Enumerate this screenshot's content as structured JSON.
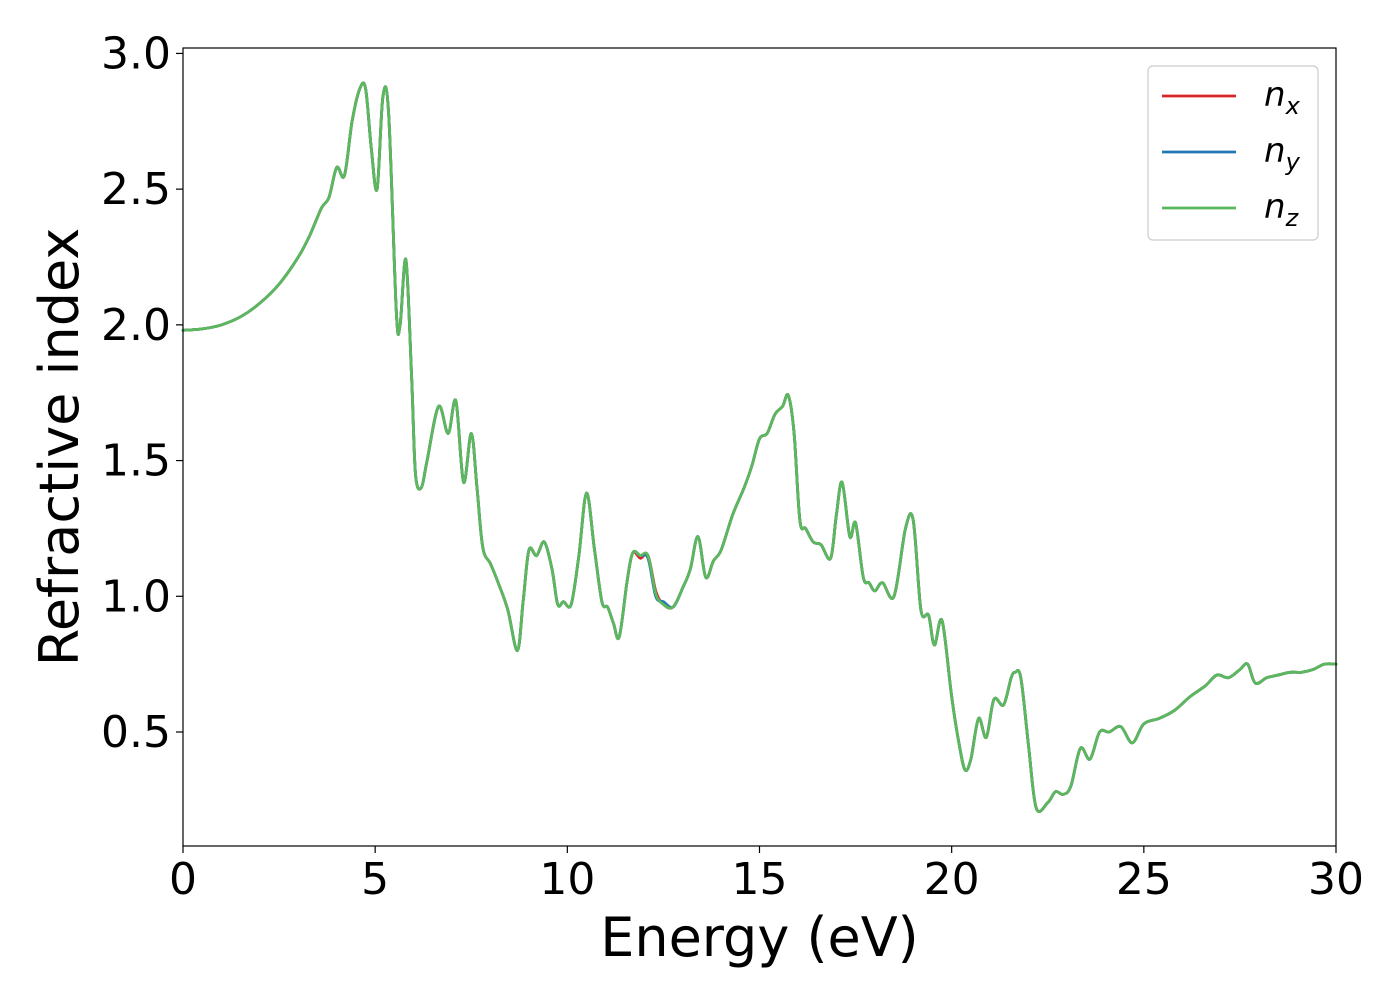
{
  "chart_data": {
    "type": "line",
    "title": "",
    "xlabel": "Energy (eV)",
    "ylabel": "Refractive index",
    "xlim": [
      0,
      30
    ],
    "ylim": [
      0.08,
      3.02
    ],
    "xticks": [
      0,
      5,
      10,
      15,
      20,
      25,
      30
    ],
    "xtick_labels": [
      "0",
      "5",
      "10",
      "15",
      "20",
      "25",
      "30"
    ],
    "yticks": [
      0.5,
      1.0,
      1.5,
      2.0,
      2.5,
      3.0
    ],
    "ytick_labels": [
      "0.5",
      "1.0",
      "1.5",
      "2.0",
      "2.5",
      "3.0"
    ],
    "grid": false,
    "legend_position": "top-right",
    "legend": [
      {
        "base": "n",
        "sub": "x"
      },
      {
        "base": "n",
        "sub": "y"
      },
      {
        "base": "n",
        "sub": "z"
      }
    ],
    "colors": [
      "#d62728",
      "#1f77b4",
      "#5cb85c"
    ],
    "x": [
      0,
      0.5,
      1.0,
      1.5,
      2.0,
      2.5,
      3.0,
      3.3,
      3.6,
      3.8,
      4.0,
      4.2,
      4.4,
      4.6,
      4.75,
      4.9,
      5.05,
      5.2,
      5.35,
      5.55,
      5.65,
      5.8,
      5.95,
      6.05,
      6.2,
      6.35,
      6.65,
      6.9,
      7.1,
      7.3,
      7.5,
      7.65,
      7.8,
      8.0,
      8.2,
      8.45,
      8.7,
      8.85,
      9.0,
      9.2,
      9.4,
      9.6,
      9.75,
      9.9,
      10.1,
      10.3,
      10.5,
      10.7,
      10.9,
      11.05,
      11.2,
      11.35,
      11.55,
      11.7,
      11.9,
      12.1,
      12.3,
      12.5,
      12.75,
      13.0,
      13.2,
      13.4,
      13.6,
      13.8,
      14.0,
      14.3,
      14.6,
      14.8,
      15.0,
      15.2,
      15.4,
      15.6,
      15.75,
      15.9,
      16.05,
      16.2,
      16.4,
      16.6,
      16.85,
      17.0,
      17.15,
      17.35,
      17.5,
      17.7,
      17.85,
      18.0,
      18.2,
      18.5,
      18.8,
      19.0,
      19.2,
      19.4,
      19.55,
      19.75,
      20.0,
      20.2,
      20.35,
      20.5,
      20.7,
      20.9,
      21.1,
      21.35,
      21.55,
      21.65,
      21.8,
      22.0,
      22.2,
      22.5,
      22.7,
      22.9,
      23.1,
      23.35,
      23.6,
      23.85,
      24.1,
      24.4,
      24.7,
      25.0,
      25.4,
      25.8,
      26.2,
      26.6,
      26.9,
      27.2,
      27.5,
      27.7,
      27.9,
      28.2,
      28.5,
      28.8,
      29.1,
      29.4,
      29.7,
      30.0
    ],
    "series": [
      {
        "name": "n_x",
        "values": [
          1.98,
          1.985,
          2.0,
          2.03,
          2.08,
          2.15,
          2.25,
          2.33,
          2.43,
          2.47,
          2.58,
          2.55,
          2.75,
          2.87,
          2.87,
          2.65,
          2.5,
          2.84,
          2.78,
          2.05,
          2.0,
          2.24,
          1.8,
          1.45,
          1.4,
          1.5,
          1.7,
          1.6,
          1.72,
          1.42,
          1.6,
          1.4,
          1.18,
          1.12,
          1.05,
          0.95,
          0.8,
          0.98,
          1.17,
          1.15,
          1.2,
          1.1,
          0.97,
          0.98,
          0.97,
          1.15,
          1.38,
          1.18,
          0.98,
          0.96,
          0.9,
          0.85,
          1.05,
          1.16,
          1.14,
          1.15,
          1.02,
          0.97,
          0.96,
          1.03,
          1.1,
          1.22,
          1.07,
          1.13,
          1.17,
          1.3,
          1.4,
          1.48,
          1.58,
          1.6,
          1.67,
          1.7,
          1.74,
          1.6,
          1.28,
          1.25,
          1.2,
          1.19,
          1.14,
          1.3,
          1.42,
          1.22,
          1.27,
          1.07,
          1.05,
          1.02,
          1.05,
          1.0,
          1.25,
          1.28,
          0.95,
          0.93,
          0.82,
          0.91,
          0.63,
          0.45,
          0.36,
          0.4,
          0.55,
          0.48,
          0.62,
          0.6,
          0.7,
          0.72,
          0.7,
          0.45,
          0.22,
          0.24,
          0.28,
          0.27,
          0.3,
          0.44,
          0.4,
          0.5,
          0.5,
          0.52,
          0.46,
          0.53,
          0.55,
          0.58,
          0.63,
          0.67,
          0.71,
          0.7,
          0.73,
          0.75,
          0.68,
          0.7,
          0.71,
          0.72,
          0.72,
          0.73,
          0.75,
          0.75
        ]
      },
      {
        "name": "n_y",
        "values": [
          1.98,
          1.985,
          2.0,
          2.03,
          2.08,
          2.15,
          2.25,
          2.33,
          2.43,
          2.47,
          2.58,
          2.55,
          2.75,
          2.87,
          2.87,
          2.65,
          2.5,
          2.84,
          2.78,
          2.05,
          2.0,
          2.24,
          1.8,
          1.45,
          1.4,
          1.5,
          1.7,
          1.6,
          1.72,
          1.42,
          1.6,
          1.4,
          1.18,
          1.12,
          1.05,
          0.95,
          0.8,
          0.98,
          1.17,
          1.15,
          1.2,
          1.1,
          0.97,
          0.98,
          0.97,
          1.15,
          1.38,
          1.18,
          0.98,
          0.96,
          0.9,
          0.85,
          1.05,
          1.16,
          1.15,
          1.14,
          1.0,
          0.98,
          0.96,
          1.03,
          1.1,
          1.22,
          1.07,
          1.13,
          1.17,
          1.3,
          1.4,
          1.48,
          1.58,
          1.6,
          1.67,
          1.7,
          1.74,
          1.6,
          1.28,
          1.25,
          1.2,
          1.19,
          1.14,
          1.3,
          1.42,
          1.22,
          1.27,
          1.07,
          1.05,
          1.02,
          1.05,
          1.0,
          1.25,
          1.28,
          0.95,
          0.93,
          0.82,
          0.91,
          0.63,
          0.45,
          0.36,
          0.4,
          0.55,
          0.48,
          0.62,
          0.6,
          0.7,
          0.72,
          0.7,
          0.45,
          0.22,
          0.24,
          0.28,
          0.27,
          0.3,
          0.44,
          0.4,
          0.5,
          0.5,
          0.52,
          0.46,
          0.53,
          0.55,
          0.58,
          0.63,
          0.67,
          0.71,
          0.7,
          0.73,
          0.75,
          0.68,
          0.7,
          0.71,
          0.72,
          0.72,
          0.73,
          0.75,
          0.75
        ]
      },
      {
        "name": "n_z",
        "values": [
          1.98,
          1.985,
          2.0,
          2.03,
          2.08,
          2.15,
          2.25,
          2.33,
          2.43,
          2.47,
          2.58,
          2.55,
          2.75,
          2.87,
          2.87,
          2.65,
          2.5,
          2.84,
          2.78,
          2.05,
          2.0,
          2.24,
          1.8,
          1.45,
          1.4,
          1.5,
          1.7,
          1.6,
          1.72,
          1.42,
          1.6,
          1.4,
          1.18,
          1.12,
          1.05,
          0.95,
          0.8,
          0.98,
          1.17,
          1.15,
          1.2,
          1.1,
          0.97,
          0.98,
          0.97,
          1.15,
          1.38,
          1.18,
          0.98,
          0.96,
          0.9,
          0.85,
          1.05,
          1.16,
          1.15,
          1.15,
          1.01,
          0.97,
          0.96,
          1.03,
          1.1,
          1.22,
          1.07,
          1.13,
          1.17,
          1.3,
          1.4,
          1.48,
          1.58,
          1.6,
          1.67,
          1.7,
          1.74,
          1.6,
          1.28,
          1.25,
          1.2,
          1.19,
          1.14,
          1.3,
          1.42,
          1.22,
          1.27,
          1.07,
          1.05,
          1.02,
          1.05,
          1.0,
          1.25,
          1.28,
          0.95,
          0.93,
          0.82,
          0.91,
          0.63,
          0.45,
          0.36,
          0.4,
          0.55,
          0.48,
          0.62,
          0.6,
          0.7,
          0.72,
          0.7,
          0.45,
          0.22,
          0.24,
          0.28,
          0.27,
          0.3,
          0.44,
          0.4,
          0.5,
          0.5,
          0.52,
          0.46,
          0.53,
          0.55,
          0.58,
          0.63,
          0.67,
          0.71,
          0.7,
          0.73,
          0.75,
          0.68,
          0.7,
          0.71,
          0.72,
          0.72,
          0.73,
          0.75,
          0.75
        ]
      }
    ]
  }
}
